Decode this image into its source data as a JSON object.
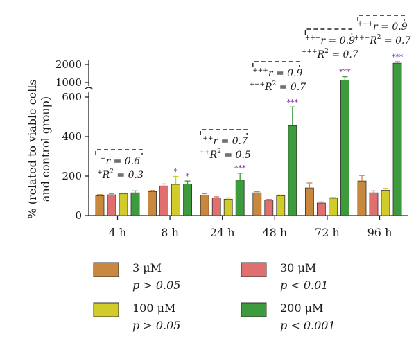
{
  "chart_data": {
    "type": "bar",
    "ylabel_line1": "% (related to viable cells",
    "ylabel_line2": "and control group)",
    "categories": [
      "4 h",
      "8 h",
      "24 h",
      "48 h",
      "72 h",
      "96 h"
    ],
    "y_ticks_lower": [
      "0",
      "200",
      "400",
      "600"
    ],
    "y_ticks_upper": [
      "1000",
      "2000"
    ],
    "ylim_lower": [
      0,
      600
    ],
    "ylim_upper": [
      1000,
      2000
    ],
    "axis_break": true,
    "series": [
      {
        "name": "3 μM",
        "significance": "p > 0.05",
        "color": "#c8893f",
        "values": [
          100,
          122,
          103,
          115,
          140,
          175
        ],
        "errors": [
          6,
          5,
          8,
          6,
          25,
          28
        ]
      },
      {
        "name": "30 μM",
        "significance": "p < 0.01",
        "color": "#e07070",
        "values": [
          105,
          150,
          90,
          78,
          63,
          115
        ],
        "errors": [
          6,
          10,
          5,
          4,
          6,
          10
        ]
      },
      {
        "name": "100 μM",
        "significance": "p > 0.05",
        "color": "#d2cc2a",
        "values": [
          110,
          158,
          83,
          100,
          88,
          128
        ],
        "errors": [
          4,
          40,
          7,
          4,
          4,
          10
        ]
      },
      {
        "name": "200 μM",
        "significance": "p < 0.001",
        "color": "#3d9a3d",
        "values": [
          115,
          160,
          180,
          455,
          1100,
          2100
        ],
        "errors": [
          10,
          15,
          35,
          95,
          150,
          120
        ]
      }
    ],
    "stars": [
      {
        "category": "8 h",
        "series": "100 μM",
        "text": "*"
      },
      {
        "category": "8 h",
        "series": "200 μM",
        "text": "*"
      },
      {
        "category": "24 h",
        "series": "200 μM",
        "text": "***"
      },
      {
        "category": "48 h",
        "series": "200 μM",
        "text": "***"
      },
      {
        "category": "72 h",
        "series": "200 μM",
        "text": "***"
      },
      {
        "category": "96 h",
        "series": "200 μM",
        "text": "***"
      }
    ],
    "annotations": [
      {
        "category": "4 h",
        "r_sig": "+",
        "r": "r = 0.6",
        "r2_sig": "+",
        "r2": "R",
        "r2_exp": "2",
        "r2_val": " = 0.3"
      },
      {
        "category": "24 h",
        "r_sig": "++",
        "r": "r = 0.7",
        "r2_sig": "++",
        "r2": "R",
        "r2_exp": "2",
        "r2_val": " = 0.5"
      },
      {
        "category": "48 h",
        "r_sig": "+++",
        "r": "r = 0.9",
        "r2_sig": "+++",
        "r2": "R",
        "r2_exp": "2",
        "r2_val": " = 0.7"
      },
      {
        "category": "72 h",
        "r_sig": "+++",
        "r": "r = 0.9",
        "r2_sig": "+++",
        "r2": "R",
        "r2_exp": "2",
        "r2_val": " = 0.7"
      },
      {
        "category": "96 h",
        "r_sig": "+++",
        "r": "r = 0.9",
        "r2_sig": "+++",
        "r2": "R",
        "r2_exp": "2",
        "r2_val": " = 0.7"
      }
    ],
    "legend_placement": "bottom"
  }
}
